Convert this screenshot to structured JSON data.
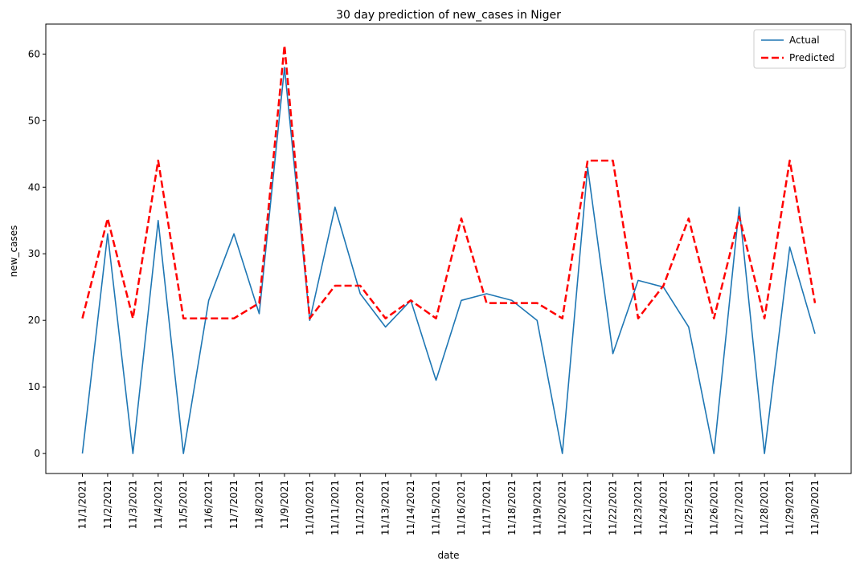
{
  "chart_data": {
    "type": "line",
    "title": "30 day prediction of new_cases in Niger",
    "xlabel": "date",
    "ylabel": "new_cases",
    "ylim": [
      -3,
      64.5
    ],
    "yticks": [
      0,
      10,
      20,
      30,
      40,
      50,
      60
    ],
    "grid": false,
    "legend_position": "top-right",
    "categories": [
      "11/1/2021",
      "11/2/2021",
      "11/3/2021",
      "11/4/2021",
      "11/5/2021",
      "11/6/2021",
      "11/7/2021",
      "11/8/2021",
      "11/9/2021",
      "11/10/2021",
      "11/11/2021",
      "11/12/2021",
      "11/13/2021",
      "11/14/2021",
      "11/15/2021",
      "11/16/2021",
      "11/17/2021",
      "11/18/2021",
      "11/19/2021",
      "11/20/2021",
      "11/21/2021",
      "11/22/2021",
      "11/23/2021",
      "11/24/2021",
      "11/25/2021",
      "11/26/2021",
      "11/27/2021",
      "11/28/2021",
      "11/29/2021",
      "11/30/2021"
    ],
    "series": [
      {
        "name": "Actual",
        "color": "#1f77b4",
        "style": "solid",
        "values": [
          0,
          33,
          0,
          35,
          0,
          23,
          33,
          21,
          58,
          20,
          37,
          24,
          19,
          23,
          11,
          23,
          24,
          23,
          20,
          0,
          43,
          15,
          26,
          25,
          19,
          0,
          37,
          0,
          31,
          18
        ]
      },
      {
        "name": "Predicted",
        "color": "#ff0000",
        "style": "dashed",
        "values": [
          20.3,
          35.3,
          20.3,
          44,
          20.3,
          20.3,
          20.3,
          22.6,
          61.3,
          20.3,
          25.2,
          25.2,
          20.3,
          23,
          20.3,
          35.3,
          22.6,
          22.6,
          22.6,
          20.3,
          44,
          44,
          20.3,
          25.2,
          35.3,
          20.3,
          35.6,
          20.3,
          44,
          22.6
        ]
      }
    ]
  }
}
